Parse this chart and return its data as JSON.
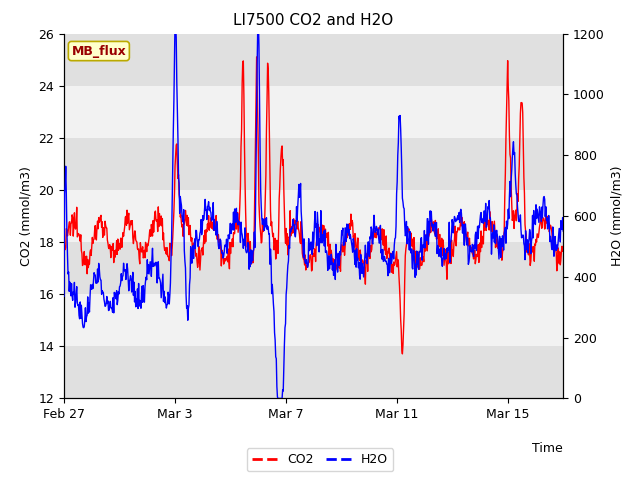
{
  "title": "LI7500 CO2 and H2O",
  "xlabel": "Time",
  "ylabel_left": "CO2 (mmol/m3)",
  "ylabel_right": "H2O (mmol/m3)",
  "ylim_left": [
    12,
    26
  ],
  "ylim_right": [
    0,
    1200
  ],
  "yticks_left": [
    12,
    14,
    16,
    18,
    20,
    22,
    24,
    26
  ],
  "yticks_right": [
    0,
    200,
    400,
    600,
    800,
    1000,
    1200
  ],
  "co2_color": "#ff0000",
  "h2o_color": "#0000ff",
  "bg_color": "#ffffff",
  "plot_bg_color": "#ffffff",
  "band_dark": "#e0e0e0",
  "band_light": "#f2f2f2",
  "mb_flux_label": "MB_flux",
  "mb_flux_bg": "#ffffcc",
  "mb_flux_border": "#bbaa00",
  "mb_flux_text_color": "#990000",
  "legend_co2_label": "CO2",
  "legend_h2o_label": "H2O",
  "xtick_labels": [
    "Feb 27",
    "Mar 3",
    "Mar 7",
    "Mar 11",
    "Mar 15"
  ],
  "xtick_positions": [
    0,
    4,
    8,
    12,
    16
  ],
  "title_fontsize": 11,
  "axis_label_fontsize": 9,
  "tick_fontsize": 9,
  "linewidth": 1.0
}
